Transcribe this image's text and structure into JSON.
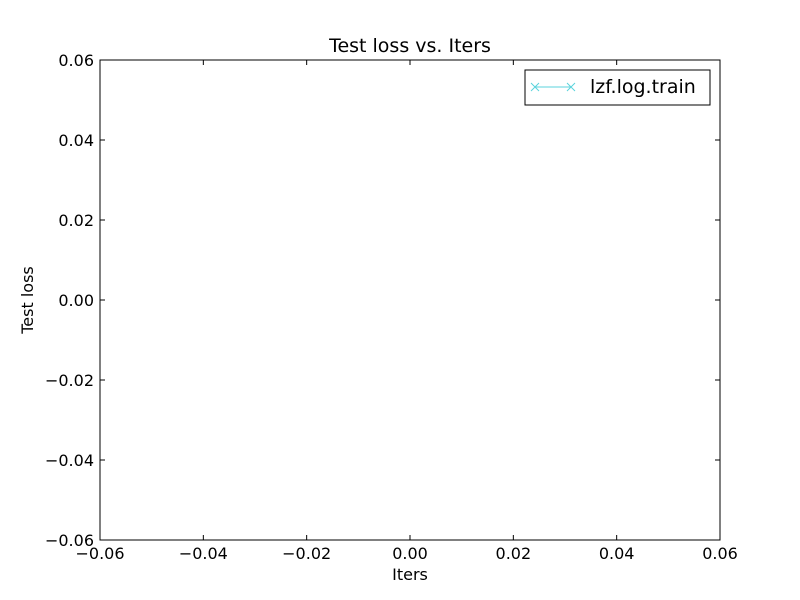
{
  "chart_data": {
    "type": "line",
    "title": "Test loss  vs. Iters",
    "xlabel": "Iters",
    "ylabel": "Test loss",
    "xlim": [
      -0.06,
      0.06
    ],
    "ylim": [
      -0.06,
      0.06
    ],
    "x_ticks": [
      "−0.06",
      "−0.04",
      "−0.02",
      "0.00",
      "0.02",
      "0.04",
      "0.06"
    ],
    "y_ticks": [
      "0.06",
      "0.04",
      "0.02",
      "0.00",
      "−0.02",
      "−0.04",
      "−0.06"
    ],
    "grid": false,
    "legend_position": "top-right",
    "series": [
      {
        "name": "lzf.log.train",
        "color": "#5bd3dc",
        "marker": "x",
        "x": [],
        "y": []
      }
    ]
  }
}
